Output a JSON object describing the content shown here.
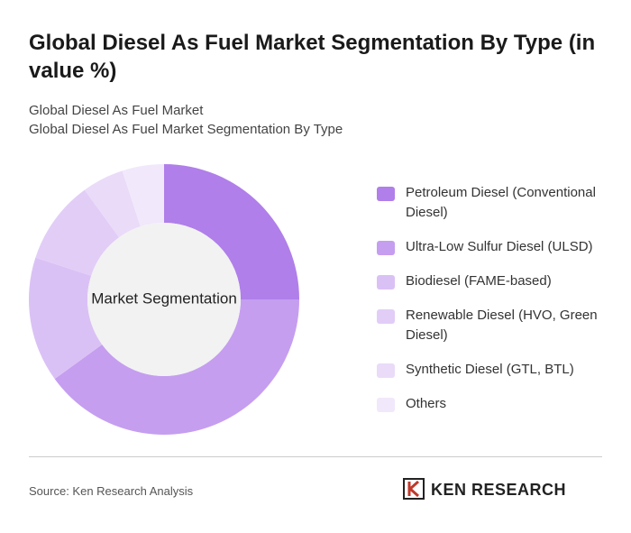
{
  "chart_data": {
    "type": "donut",
    "title": "Global Diesel As Fuel Market Segmentation By Type (in value %)",
    "subtitle": [
      "Global Diesel As Fuel Market",
      "Global Diesel As Fuel Market Segmentation By Type"
    ],
    "center_label": "Market Segmentation",
    "categories": [
      "Petroleum Diesel (Conventional Diesel)",
      "Ultra-Low Sulfur Diesel (ULSD)",
      "Biodiesel (FAME-based)",
      "Renewable Diesel (HVO, Green Diesel)",
      "Synthetic Diesel (GTL, BTL)",
      "Others"
    ],
    "values": [
      25,
      40,
      15,
      10,
      5,
      5
    ],
    "colors": [
      "#b07fe9",
      "#c59ef0",
      "#dac1f5",
      "#e2cdf7",
      "#eadbf9",
      "#f1e8fb"
    ],
    "source": "Source: Ken Research Analysis",
    "logo": "KEN RESEARCH"
  }
}
